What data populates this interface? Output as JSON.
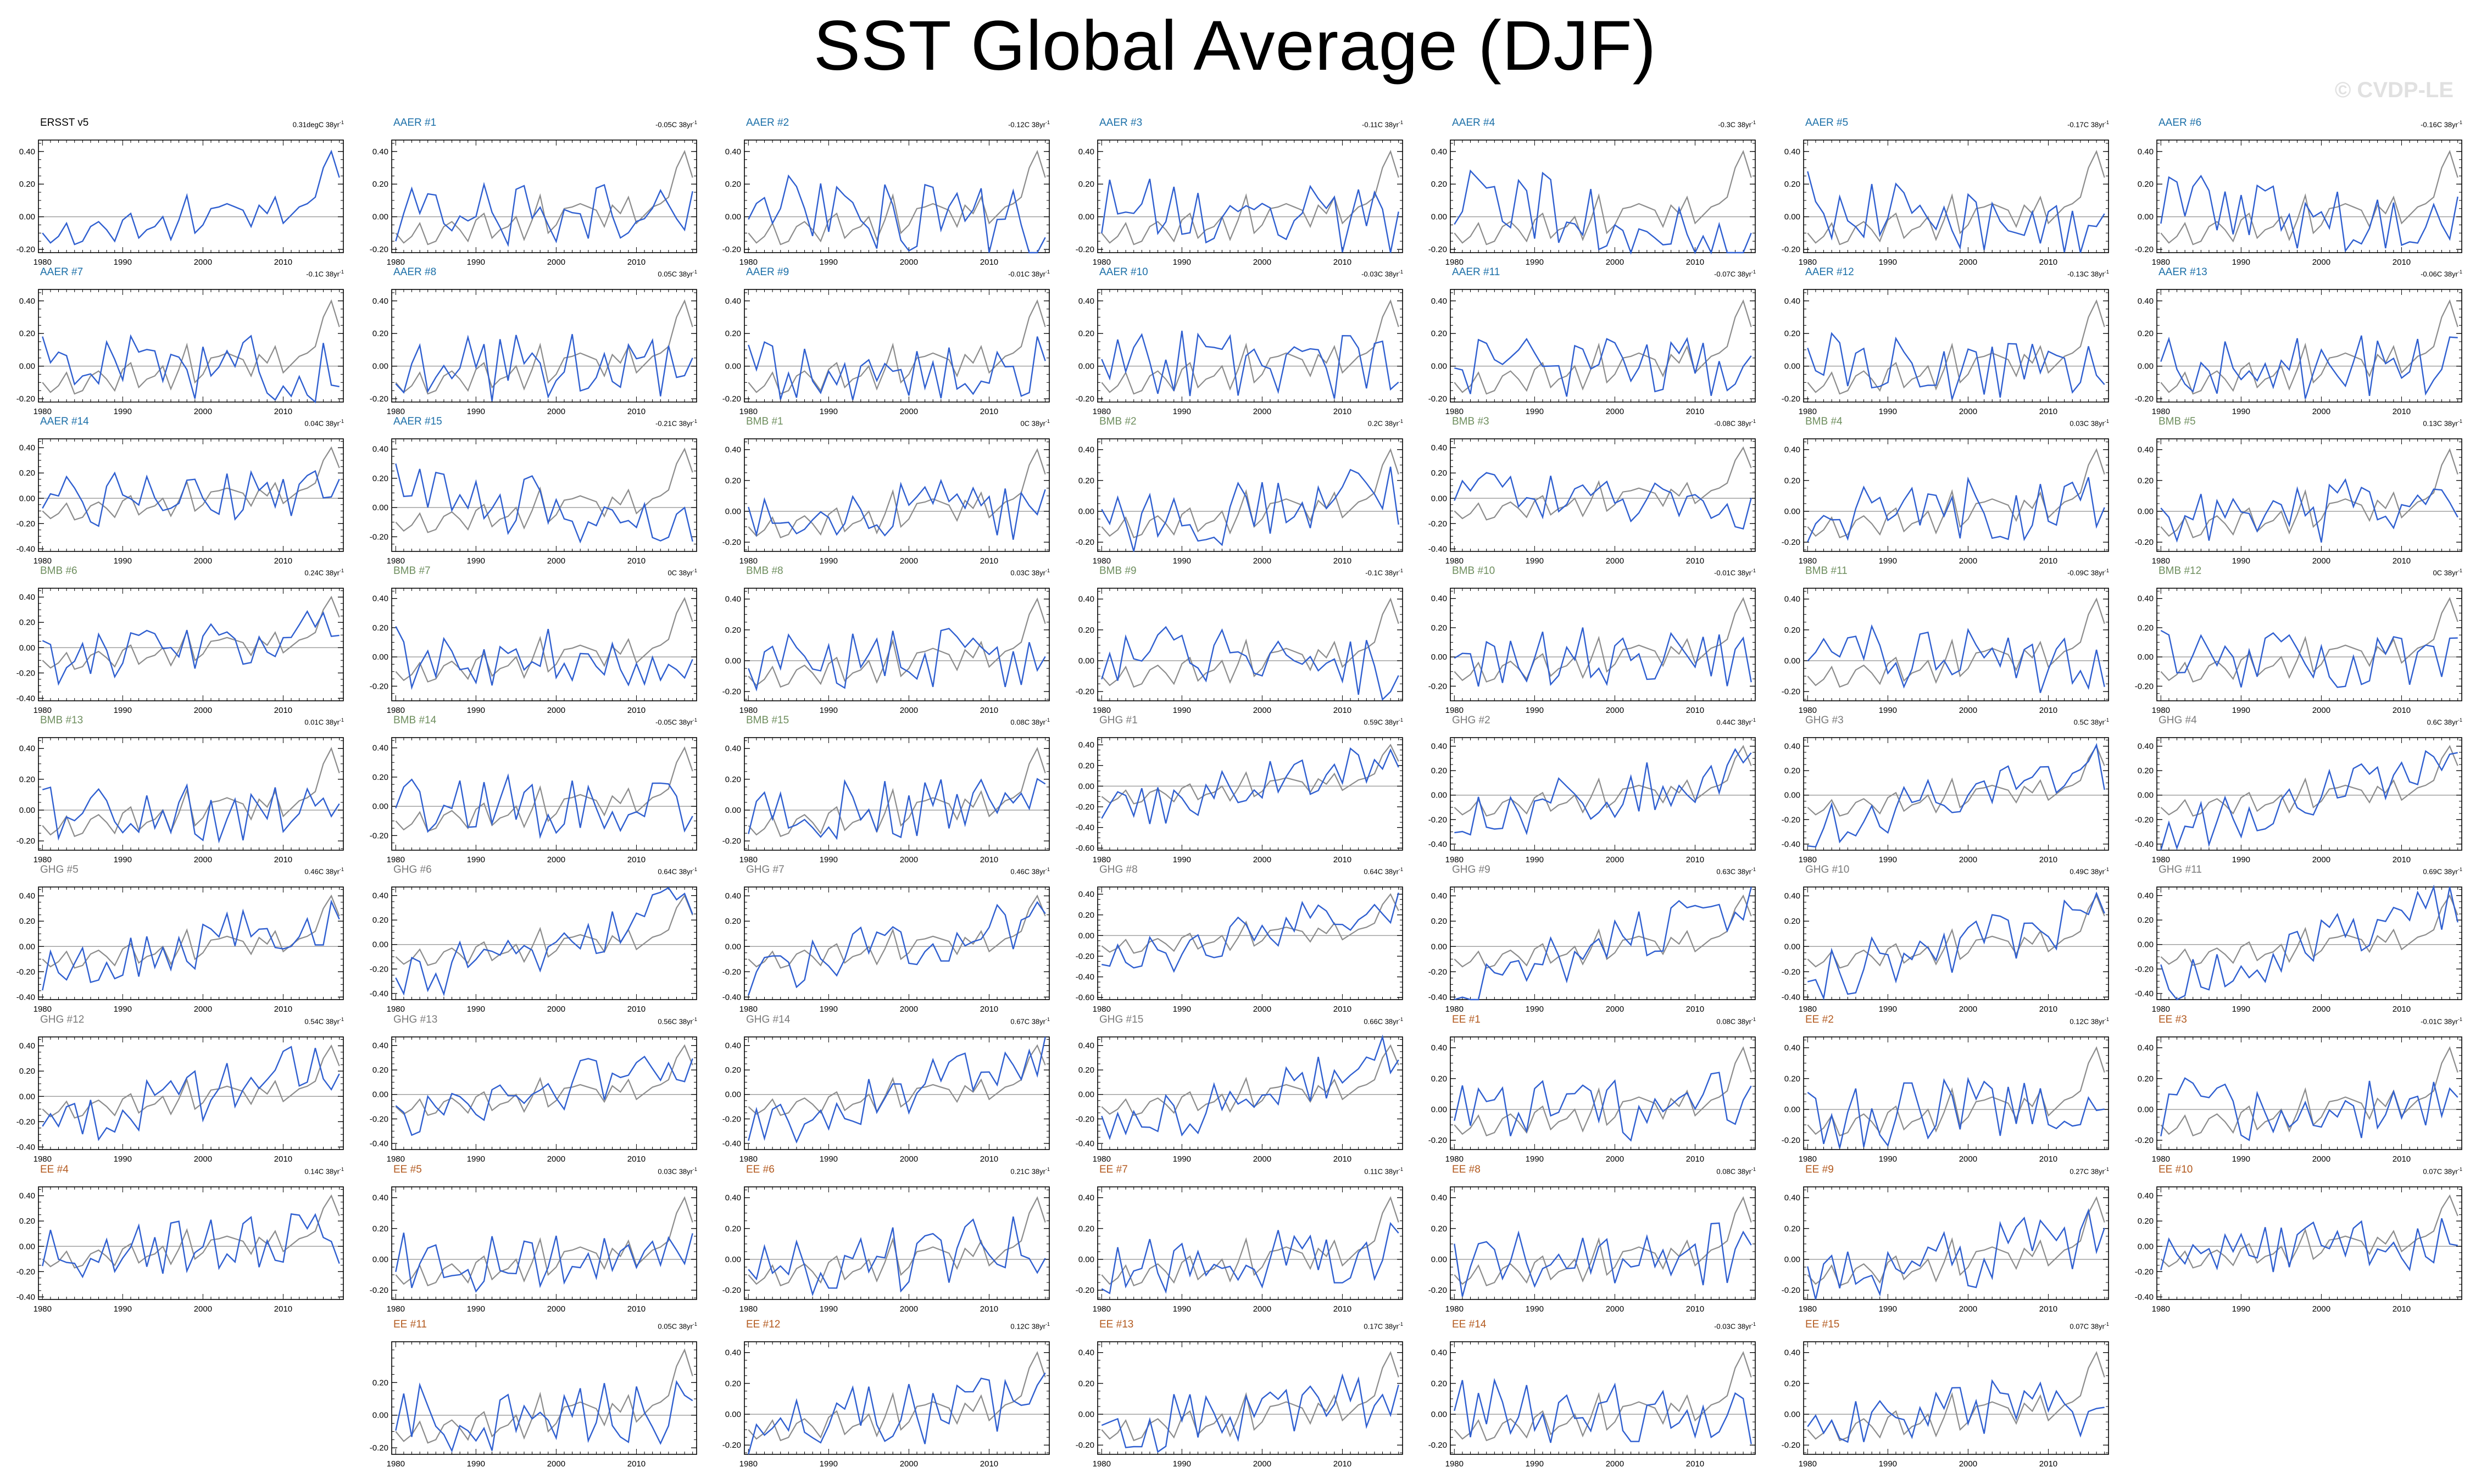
{
  "title": "SST Global Average (DJF)",
  "watermark": "© CVDP-LE",
  "colors": {
    "observed": "#8c8c8c",
    "ensemble": "#2f5fd0",
    "zero_line": "#a0a0a0",
    "ERSST": "#000000",
    "AAER": "#1b6fa8",
    "BMB": "#6f8f5f",
    "GHG": "#7a7a7a",
    "EE": "#b35a1f"
  },
  "trend_suffix": "38yr",
  "trend_exponent": "-1",
  "chart_data": {
    "type": "line",
    "years": [
      1980,
      2017
    ],
    "xticks": [
      1980,
      1990,
      2000,
      2010
    ],
    "panels": [
      {
        "name": "ERSST v5",
        "group": "ERSST",
        "trend": "0.31degC",
        "yticks": [
          "0.40",
          "0.20",
          "0.00",
          "-0.20"
        ],
        "ylim": [
          -0.22,
          0.47
        ]
      },
      {
        "name": "AAER #1",
        "group": "AAER",
        "trend": "-0.05C",
        "yticks": [
          "0.40",
          "0.20",
          "0.00",
          "-0.20"
        ],
        "ylim": [
          -0.22,
          0.47
        ]
      },
      {
        "name": "AAER #2",
        "group": "AAER",
        "trend": "-0.12C",
        "yticks": [
          "0.40",
          "0.20",
          "0.00",
          "-0.20"
        ],
        "ylim": [
          -0.22,
          0.47
        ]
      },
      {
        "name": "AAER #3",
        "group": "AAER",
        "trend": "-0.11C",
        "yticks": [
          "0.40",
          "0.20",
          "0.00",
          "-0.20"
        ],
        "ylim": [
          -0.22,
          0.47
        ]
      },
      {
        "name": "AAER #4",
        "group": "AAER",
        "trend": "-0.3C",
        "yticks": [
          "0.40",
          "0.20",
          "0.00",
          "-0.20"
        ],
        "ylim": [
          -0.22,
          0.47
        ]
      },
      {
        "name": "AAER #5",
        "group": "AAER",
        "trend": "-0.17C",
        "yticks": [
          "0.40",
          "0.20",
          "0.00",
          "-0.20"
        ],
        "ylim": [
          -0.22,
          0.47
        ]
      },
      {
        "name": "AAER #6",
        "group": "AAER",
        "trend": "-0.16C",
        "yticks": [
          "0.40",
          "0.20",
          "0.00",
          "-0.20"
        ],
        "ylim": [
          -0.22,
          0.47
        ]
      },
      {
        "name": "AAER #7",
        "group": "AAER",
        "trend": "-0.1C",
        "yticks": [
          "0.40",
          "0.20",
          "0.00",
          "-0.20"
        ],
        "ylim": [
          -0.22,
          0.47
        ]
      },
      {
        "name": "AAER #8",
        "group": "AAER",
        "trend": "0.05C",
        "yticks": [
          "0.40",
          "0.20",
          "0.00",
          "-0.20"
        ],
        "ylim": [
          -0.22,
          0.47
        ]
      },
      {
        "name": "AAER #9",
        "group": "AAER",
        "trend": "-0.01C",
        "yticks": [
          "0.40",
          "0.20",
          "0.00",
          "-0.20"
        ],
        "ylim": [
          -0.22,
          0.47
        ]
      },
      {
        "name": "AAER #10",
        "group": "AAER",
        "trend": "-0.03C",
        "yticks": [
          "0.40",
          "0.20",
          "0.00",
          "-0.20"
        ],
        "ylim": [
          -0.22,
          0.47
        ]
      },
      {
        "name": "AAER #11",
        "group": "AAER",
        "trend": "-0.07C",
        "yticks": [
          "0.40",
          "0.20",
          "0.00",
          "-0.20"
        ],
        "ylim": [
          -0.22,
          0.47
        ]
      },
      {
        "name": "AAER #12",
        "group": "AAER",
        "trend": "-0.13C",
        "yticks": [
          "0.40",
          "0.20",
          "0.00",
          "-0.20"
        ],
        "ylim": [
          -0.22,
          0.47
        ]
      },
      {
        "name": "AAER #13",
        "group": "AAER",
        "trend": "-0.06C",
        "yticks": [
          "0.40",
          "0.20",
          "0.00",
          "-0.20"
        ],
        "ylim": [
          -0.22,
          0.47
        ]
      },
      {
        "name": "AAER #14",
        "group": "AAER",
        "trend": "0.04C",
        "yticks": [
          "0.40",
          "0.20",
          "0.00",
          "-0.20",
          "-0.40"
        ],
        "ylim": [
          -0.42,
          0.47
        ]
      },
      {
        "name": "AAER #15",
        "group": "AAER",
        "trend": "-0.21C",
        "yticks": [
          "0.40",
          "0.20",
          "0.00",
          "-0.20"
        ],
        "ylim": [
          -0.3,
          0.47
        ]
      },
      {
        "name": "BMB #1",
        "group": "BMB",
        "trend": "0C",
        "yticks": [
          "0.40",
          "0.20",
          "0.00",
          "-0.20"
        ],
        "ylim": [
          -0.26,
          0.47
        ]
      },
      {
        "name": "BMB #2",
        "group": "BMB",
        "trend": "0.2C",
        "yticks": [
          "0.40",
          "0.20",
          "0.00",
          "-0.20"
        ],
        "ylim": [
          -0.26,
          0.47
        ]
      },
      {
        "name": "BMB #3",
        "group": "BMB",
        "trend": "-0.08C",
        "yticks": [
          "0.40",
          "0.20",
          "0.00",
          "-0.20",
          "-0.40"
        ],
        "ylim": [
          -0.42,
          0.47
        ]
      },
      {
        "name": "BMB #4",
        "group": "BMB",
        "trend": "0.03C",
        "yticks": [
          "0.40",
          "0.20",
          "0.00",
          "-0.20"
        ],
        "ylim": [
          -0.26,
          0.47
        ]
      },
      {
        "name": "BMB #5",
        "group": "BMB",
        "trend": "0.13C",
        "yticks": [
          "0.40",
          "0.20",
          "0.00",
          "-0.20"
        ],
        "ylim": [
          -0.26,
          0.47
        ]
      },
      {
        "name": "BMB #6",
        "group": "BMB",
        "trend": "0.24C",
        "yticks": [
          "0.40",
          "0.20",
          "0.00",
          "-0.20",
          "-0.40"
        ],
        "ylim": [
          -0.42,
          0.47
        ]
      },
      {
        "name": "BMB #7",
        "group": "BMB",
        "trend": "0C",
        "yticks": [
          "0.40",
          "0.20",
          "0.00",
          "-0.20"
        ],
        "ylim": [
          -0.3,
          0.47
        ]
      },
      {
        "name": "BMB #8",
        "group": "BMB",
        "trend": "0.03C",
        "yticks": [
          "0.40",
          "0.20",
          "0.00",
          "-0.20"
        ],
        "ylim": [
          -0.26,
          0.47
        ]
      },
      {
        "name": "BMB #9",
        "group": "BMB",
        "trend": "-0.1C",
        "yticks": [
          "0.40",
          "0.20",
          "0.00",
          "-0.20"
        ],
        "ylim": [
          -0.26,
          0.47
        ]
      },
      {
        "name": "BMB #10",
        "group": "BMB",
        "trend": "-0.01C",
        "yticks": [
          "0.40",
          "0.20",
          "0.00",
          "-0.20"
        ],
        "ylim": [
          -0.3,
          0.47
        ]
      },
      {
        "name": "BMB #11",
        "group": "BMB",
        "trend": "-0.09C",
        "yticks": [
          "0.40",
          "0.20",
          "0.00",
          "-0.20"
        ],
        "ylim": [
          -0.26,
          0.47
        ]
      },
      {
        "name": "BMB #12",
        "group": "BMB",
        "trend": "0C",
        "yticks": [
          "0.40",
          "0.20",
          "0.00",
          "-0.20"
        ],
        "ylim": [
          -0.3,
          0.47
        ]
      },
      {
        "name": "BMB #13",
        "group": "BMB",
        "trend": "0.01C",
        "yticks": [
          "0.40",
          "0.20",
          "0.00",
          "-0.20"
        ],
        "ylim": [
          -0.26,
          0.47
        ]
      },
      {
        "name": "BMB #14",
        "group": "BMB",
        "trend": "-0.05C",
        "yticks": [
          "0.40",
          "0.20",
          "0.00",
          "-0.20"
        ],
        "ylim": [
          -0.3,
          0.47
        ]
      },
      {
        "name": "BMB #15",
        "group": "BMB",
        "trend": "0.08C",
        "yticks": [
          "0.40",
          "0.20",
          "0.00",
          "-0.20"
        ],
        "ylim": [
          -0.26,
          0.47
        ]
      },
      {
        "name": "GHG #1",
        "group": "GHG",
        "trend": "0.59C",
        "yticks": [
          "0.40",
          "0.20",
          "0.00",
          "-0.20",
          "-0.40",
          "-0.60"
        ],
        "ylim": [
          -0.62,
          0.47
        ]
      },
      {
        "name": "GHG #2",
        "group": "GHG",
        "trend": "0.44C",
        "yticks": [
          "0.40",
          "0.20",
          "0.00",
          "-0.20",
          "-0.40"
        ],
        "ylim": [
          -0.45,
          0.47
        ]
      },
      {
        "name": "GHG #3",
        "group": "GHG",
        "trend": "0.5C",
        "yticks": [
          "0.40",
          "0.20",
          "0.00",
          "-0.20",
          "-0.40"
        ],
        "ylim": [
          -0.45,
          0.47
        ]
      },
      {
        "name": "GHG #4",
        "group": "GHG",
        "trend": "0.6C",
        "yticks": [
          "0.40",
          "0.20",
          "0.00",
          "-0.20",
          "-0.40"
        ],
        "ylim": [
          -0.45,
          0.47
        ]
      },
      {
        "name": "GHG #5",
        "group": "GHG",
        "trend": "0.46C",
        "yticks": [
          "0.40",
          "0.20",
          "0.00",
          "-0.20",
          "-0.40"
        ],
        "ylim": [
          -0.42,
          0.47
        ]
      },
      {
        "name": "GHG #6",
        "group": "GHG",
        "trend": "0.64C",
        "yticks": [
          "0.40",
          "0.20",
          "0.00",
          "-0.20",
          "-0.40"
        ],
        "ylim": [
          -0.45,
          0.47
        ]
      },
      {
        "name": "GHG #7",
        "group": "GHG",
        "trend": "0.46C",
        "yticks": [
          "0.40",
          "0.20",
          "0.00",
          "-0.20",
          "-0.40"
        ],
        "ylim": [
          -0.42,
          0.47
        ]
      },
      {
        "name": "GHG #8",
        "group": "GHG",
        "trend": "0.64C",
        "yticks": [
          "0.40",
          "0.20",
          "0.00",
          "-0.20",
          "-0.40",
          "-0.60"
        ],
        "ylim": [
          -0.62,
          0.47
        ]
      },
      {
        "name": "GHG #9",
        "group": "GHG",
        "trend": "0.63C",
        "yticks": [
          "0.40",
          "0.20",
          "0.00",
          "-0.20",
          "-0.40"
        ],
        "ylim": [
          -0.42,
          0.47
        ]
      },
      {
        "name": "GHG #10",
        "group": "GHG",
        "trend": "0.49C",
        "yticks": [
          "0.40",
          "0.20",
          "0.00",
          "-0.20",
          "-0.40"
        ],
        "ylim": [
          -0.42,
          0.47
        ]
      },
      {
        "name": "GHG #11",
        "group": "GHG",
        "trend": "0.69C",
        "yticks": [
          "0.40",
          "0.20",
          "0.00",
          "-0.20",
          "-0.40"
        ],
        "ylim": [
          -0.45,
          0.47
        ]
      },
      {
        "name": "GHG #12",
        "group": "GHG",
        "trend": "0.54C",
        "yticks": [
          "0.40",
          "0.20",
          "0.00",
          "-0.20",
          "-0.40"
        ],
        "ylim": [
          -0.42,
          0.47
        ]
      },
      {
        "name": "GHG #13",
        "group": "GHG",
        "trend": "0.56C",
        "yticks": [
          "0.40",
          "0.20",
          "0.00",
          "-0.20",
          "-0.40"
        ],
        "ylim": [
          -0.45,
          0.47
        ]
      },
      {
        "name": "GHG #14",
        "group": "GHG",
        "trend": "0.67C",
        "yticks": [
          "0.40",
          "0.20",
          "0.00",
          "-0.20",
          "-0.40"
        ],
        "ylim": [
          -0.45,
          0.47
        ]
      },
      {
        "name": "GHG #15",
        "group": "GHG",
        "trend": "0.66C",
        "yticks": [
          "0.40",
          "0.20",
          "0.00",
          "-0.20",
          "-0.40"
        ],
        "ylim": [
          -0.45,
          0.47
        ]
      },
      {
        "name": "EE #1",
        "group": "EE",
        "trend": "0.08C",
        "yticks": [
          "0.40",
          "0.20",
          "0.00",
          "-0.20"
        ],
        "ylim": [
          -0.26,
          0.47
        ]
      },
      {
        "name": "EE #2",
        "group": "EE",
        "trend": "0.12C",
        "yticks": [
          "0.40",
          "0.20",
          "0.00",
          "-0.20"
        ],
        "ylim": [
          -0.26,
          0.47
        ]
      },
      {
        "name": "EE #3",
        "group": "EE",
        "trend": "-0.01C",
        "yticks": [
          "0.40",
          "0.20",
          "0.00",
          "-0.20"
        ],
        "ylim": [
          -0.26,
          0.47
        ]
      },
      {
        "name": "EE #4",
        "group": "EE",
        "trend": "0.14C",
        "yticks": [
          "0.40",
          "0.20",
          "0.00",
          "-0.20",
          "-0.40"
        ],
        "ylim": [
          -0.42,
          0.47
        ]
      },
      {
        "name": "EE #5",
        "group": "EE",
        "trend": "0.03C",
        "yticks": [
          "0.40",
          "0.20",
          "0.00",
          "-0.20"
        ],
        "ylim": [
          -0.26,
          0.47
        ]
      },
      {
        "name": "EE #6",
        "group": "EE",
        "trend": "0.21C",
        "yticks": [
          "0.40",
          "0.20",
          "0.00",
          "-0.20"
        ],
        "ylim": [
          -0.26,
          0.47
        ]
      },
      {
        "name": "EE #7",
        "group": "EE",
        "trend": "0.11C",
        "yticks": [
          "0.40",
          "0.20",
          "0.00",
          "-0.20"
        ],
        "ylim": [
          -0.26,
          0.47
        ]
      },
      {
        "name": "EE #8",
        "group": "EE",
        "trend": "0.08C",
        "yticks": [
          "0.40",
          "0.20",
          "0.00",
          "-0.20"
        ],
        "ylim": [
          -0.26,
          0.47
        ]
      },
      {
        "name": "EE #9",
        "group": "EE",
        "trend": "0.27C",
        "yticks": [
          "0.40",
          "0.20",
          "0.00",
          "-0.20"
        ],
        "ylim": [
          -0.26,
          0.47
        ]
      },
      {
        "name": "EE #10",
        "group": "EE",
        "trend": "0.07C",
        "yticks": [
          "0.40",
          "0.20",
          "0.00",
          "-0.20",
          "-0.40"
        ],
        "ylim": [
          -0.42,
          0.47
        ]
      },
      {
        "name": "EE #11",
        "group": "EE",
        "trend": "0.05C",
        "yticks": [
          "0.20",
          "0.00",
          "-0.20"
        ],
        "ylim": [
          -0.24,
          0.45
        ]
      },
      {
        "name": "EE #12",
        "group": "EE",
        "trend": "0.12C",
        "yticks": [
          "0.40",
          "0.20",
          "0.00",
          "-0.20"
        ],
        "ylim": [
          -0.26,
          0.47
        ]
      },
      {
        "name": "EE #13",
        "group": "EE",
        "trend": "0.17C",
        "yticks": [
          "0.40",
          "0.20",
          "0.00",
          "-0.20"
        ],
        "ylim": [
          -0.26,
          0.47
        ]
      },
      {
        "name": "EE #14",
        "group": "EE",
        "trend": "-0.03C",
        "yticks": [
          "0.40",
          "0.20",
          "0.00",
          "-0.20"
        ],
        "ylim": [
          -0.26,
          0.47
        ]
      },
      {
        "name": "EE #15",
        "group": "EE",
        "trend": "0.07C",
        "yticks": [
          "0.40",
          "0.20",
          "0.00",
          "-0.20"
        ],
        "ylim": [
          -0.26,
          0.47
        ]
      }
    ],
    "observed": [
      -0.1,
      -0.16,
      -0.12,
      -0.04,
      -0.17,
      -0.15,
      -0.06,
      -0.03,
      -0.08,
      -0.15,
      -0.02,
      0.02,
      -0.13,
      -0.08,
      -0.06,
      0.0,
      -0.14,
      -0.02,
      0.13,
      -0.1,
      -0.05,
      0.05,
      0.06,
      0.08,
      0.06,
      0.04,
      -0.06,
      0.07,
      0.02,
      0.12,
      -0.04,
      0.01,
      0.06,
      0.08,
      0.12,
      0.3,
      0.4,
      0.24
    ]
  }
}
